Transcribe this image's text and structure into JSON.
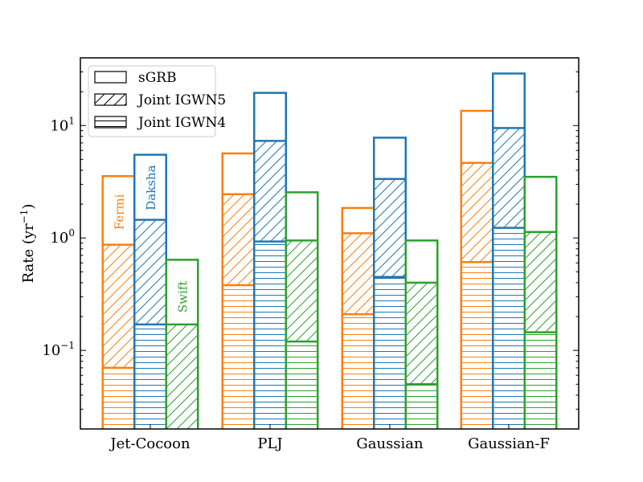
{
  "chart_data": {
    "type": "bar",
    "scale": "log",
    "ylabel_main": "Rate (yr",
    "ylabel_exp": "−1",
    "ylabel_close": ")",
    "ylim": [
      0.02,
      40
    ],
    "yticks": [
      {
        "value": 0.1,
        "base": "10",
        "exp": "−1"
      },
      {
        "value": 1,
        "base": "10",
        "exp": "0"
      },
      {
        "value": 10,
        "base": "10",
        "exp": "1"
      }
    ],
    "categories": [
      "Jet-Cocoon",
      "PLJ",
      "Gaussian",
      "Gaussian-F"
    ],
    "series": [
      {
        "name": "Fermi",
        "color": "#ff7f0e",
        "sGRB": [
          3.55,
          5.65,
          1.85,
          13.5
        ],
        "joint_igwn5": [
          0.87,
          2.45,
          1.1,
          4.65
        ],
        "joint_igwn4": [
          0.07,
          0.38,
          0.21,
          0.61
        ]
      },
      {
        "name": "Daksha",
        "color": "#1f77b4",
        "sGRB": [
          5.5,
          19.5,
          7.8,
          29.0
        ],
        "joint_igwn5": [
          1.45,
          7.3,
          3.35,
          9.5
        ],
        "joint_igwn4": [
          0.17,
          0.93,
          0.45,
          1.23
        ]
      },
      {
        "name": "Swift",
        "color": "#2ca02c",
        "sGRB": [
          0.64,
          2.55,
          0.95,
          3.5
        ],
        "joint_igwn5": [
          0.17,
          0.95,
          0.4,
          1.13
        ],
        "joint_igwn4": [
          0.02,
          0.12,
          0.05,
          0.145
        ]
      }
    ],
    "legend": {
      "position": "top-left",
      "entries": [
        {
          "label": "sGRB",
          "pattern": "open"
        },
        {
          "label": "Joint IGWN5",
          "pattern": "diagonal-hatch"
        },
        {
          "label": "Joint IGWN4",
          "pattern": "horizontal-hatch"
        }
      ]
    },
    "annotations": [
      {
        "text": "Fermi",
        "series": "Fermi",
        "category": "Jet-Cocoon"
      },
      {
        "text": "Daksha",
        "series": "Daksha",
        "category": "Jet-Cocoon"
      },
      {
        "text": "Swift",
        "series": "Swift",
        "category": "Jet-Cocoon"
      }
    ]
  }
}
